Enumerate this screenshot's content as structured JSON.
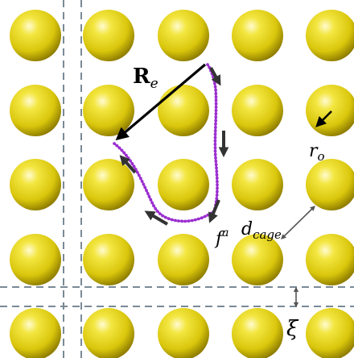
{
  "colors": {
    "obstacle": "#e8d81e",
    "obstacle_highlight": "#fff7a6",
    "obstacle_shadow": "#a89400",
    "grid_line": "#7a8a96",
    "polymer": "#9b2fd0",
    "force_arrow": "#333333",
    "vector": "#000000",
    "dimension": "#555555"
  },
  "labels": {
    "end_to_end_vector": "R",
    "end_to_end_vector_sub": "e",
    "active_force": "f",
    "active_force_sup": "a",
    "obstacle_radius": "r",
    "obstacle_radius_sub": "o",
    "cage_size": "d",
    "cage_size_sub": "cage",
    "channel_width": "ξ"
  },
  "icons": {
    "obstacle": "sphere-icon",
    "force": "arrow-icon"
  }
}
